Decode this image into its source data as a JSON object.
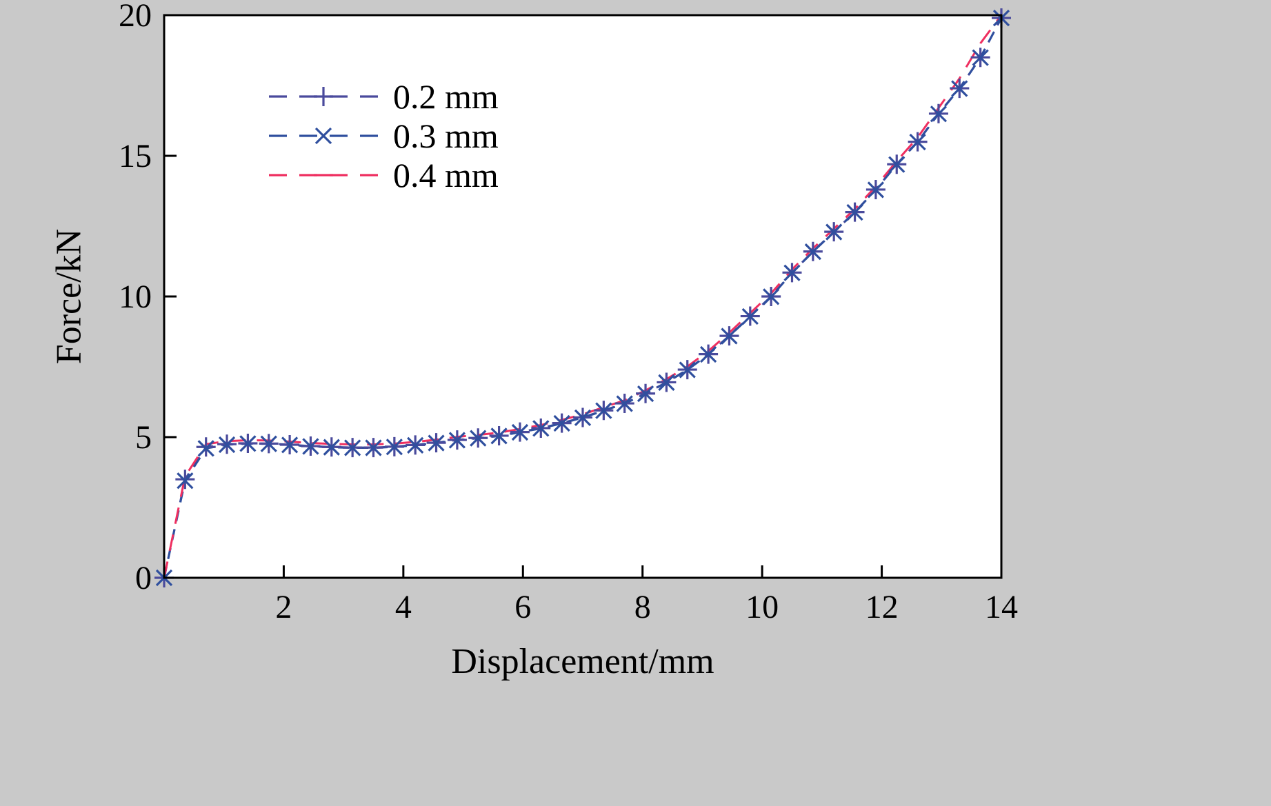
{
  "chart_data": {
    "type": "line",
    "title": "",
    "xlabel": "Displacement/mm",
    "ylabel": "Force/kN",
    "xlim": [
      0,
      14
    ],
    "ylim": [
      0,
      20
    ],
    "xticks": [
      2,
      4,
      6,
      8,
      10,
      12,
      14
    ],
    "yticks": [
      0,
      5,
      10,
      15,
      20
    ],
    "grid": false,
    "legend_position": "upper-left",
    "frame_color": "#000000",
    "plot_background": "#ffffff",
    "x": [
      0,
      0.35,
      0.7,
      1.05,
      1.4,
      1.75,
      2.1,
      2.45,
      2.8,
      3.15,
      3.5,
      3.85,
      4.2,
      4.55,
      4.9,
      5.25,
      5.6,
      5.95,
      6.3,
      6.65,
      7.0,
      7.35,
      7.7,
      8.05,
      8.4,
      8.75,
      9.1,
      9.45,
      9.8,
      10.15,
      10.5,
      10.85,
      11.2,
      11.55,
      11.9,
      12.25,
      12.6,
      12.95,
      13.3,
      13.65,
      14.0
    ],
    "series": [
      {
        "name": "0.2 mm",
        "color": "#4a4a9c",
        "marker": "plus",
        "dash": "16,12",
        "values": [
          0,
          3.5,
          4.65,
          4.75,
          4.78,
          4.77,
          4.73,
          4.68,
          4.65,
          4.63,
          4.63,
          4.66,
          4.72,
          4.8,
          4.9,
          4.97,
          5.05,
          5.18,
          5.32,
          5.5,
          5.7,
          5.95,
          6.2,
          6.55,
          6.95,
          7.4,
          7.95,
          8.6,
          9.3,
          10.0,
          10.85,
          11.6,
          12.3,
          13.0,
          13.8,
          14.7,
          15.5,
          16.5,
          17.4,
          18.5,
          19.9
        ]
      },
      {
        "name": "0.3 mm",
        "color": "#2f4f9e",
        "marker": "x",
        "dash": "16,12",
        "values": [
          0,
          3.45,
          4.6,
          4.73,
          4.77,
          4.76,
          4.72,
          4.67,
          4.64,
          4.62,
          4.62,
          4.65,
          4.71,
          4.79,
          4.89,
          4.96,
          5.04,
          5.17,
          5.31,
          5.49,
          5.69,
          5.94,
          6.19,
          6.54,
          6.94,
          7.39,
          7.94,
          8.59,
          9.29,
          9.99,
          10.84,
          11.59,
          12.29,
          12.99,
          13.79,
          14.69,
          15.49,
          16.49,
          17.39,
          18.49,
          19.9
        ]
      },
      {
        "name": "0.4 mm",
        "color": "#ef2f60",
        "marker": "dash",
        "dash": "24,16",
        "values": [
          0,
          3.6,
          4.75,
          4.86,
          4.89,
          4.88,
          4.84,
          4.79,
          4.76,
          4.74,
          4.74,
          4.77,
          4.83,
          4.91,
          5.01,
          5.08,
          5.16,
          5.29,
          5.43,
          5.61,
          5.81,
          6.06,
          6.31,
          6.66,
          7.06,
          7.51,
          8.06,
          8.71,
          9.41,
          10.11,
          10.96,
          11.71,
          12.41,
          13.11,
          13.91,
          14.81,
          15.65,
          16.7,
          17.75,
          19.0,
          20.0
        ]
      }
    ]
  }
}
